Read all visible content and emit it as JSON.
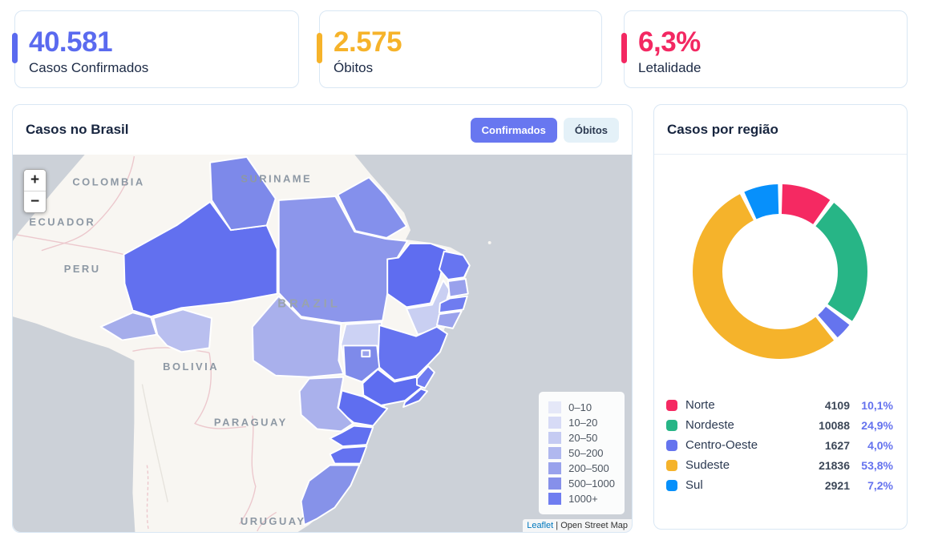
{
  "stats": [
    {
      "value": "40.581",
      "label": "Casos Confirmados",
      "color": "#5a6aef"
    },
    {
      "value": "2.575",
      "label": "Óbitos",
      "color": "#f6b32a"
    },
    {
      "value": "6,3%",
      "label": "Letalidade",
      "color": "#f32862"
    }
  ],
  "map_card": {
    "title": "Casos no Brasil",
    "buttons": [
      {
        "label": "Confirmados",
        "active": true
      },
      {
        "label": "Óbitos",
        "active": false
      }
    ],
    "zoom_in_label": "+",
    "zoom_out_label": "−",
    "country_labels": [
      "COLOMBIA",
      "ECUADOR",
      "PERU",
      "SURINAME",
      "BRAZIL",
      "BOLIVIA",
      "PARAGUAY",
      "URUGUAY"
    ],
    "legend": {
      "items": [
        {
          "label": "0–10",
          "color": "#e5e8f8"
        },
        {
          "label": "10–20",
          "color": "#d7dbf6"
        },
        {
          "label": "20–50",
          "color": "#c5cbf2"
        },
        {
          "label": "50–200",
          "color": "#b0b8ef"
        },
        {
          "label": "200–500",
          "color": "#99a2ec"
        },
        {
          "label": "500–1000",
          "color": "#8690ea"
        },
        {
          "label": "1000+",
          "color": "#6f7df0"
        }
      ]
    },
    "attribution": {
      "leaflet": "Leaflet",
      "separator": "|",
      "source": "Open Street Map"
    }
  },
  "region_card": {
    "title": "Casos por região",
    "regions": [
      {
        "name": "Norte",
        "value": "4109",
        "pct": "10,1%",
        "color": "#f52962"
      },
      {
        "name": "Nordeste",
        "value": "10088",
        "pct": "24,9%",
        "color": "#27b586"
      },
      {
        "name": "Centro-Oeste",
        "value": "1627",
        "pct": "4,0%",
        "color": "#6574ee"
      },
      {
        "name": "Sudeste",
        "value": "21836",
        "pct": "53,8%",
        "color": "#f5b32b"
      },
      {
        "name": "Sul",
        "value": "2921",
        "pct": "7,2%",
        "color": "#0790fb"
      }
    ]
  },
  "chart_data": {
    "type": "pie",
    "title": "Casos por região",
    "categories": [
      "Norte",
      "Nordeste",
      "Centro-Oeste",
      "Sudeste",
      "Sul"
    ],
    "values": [
      4109,
      10088,
      1627,
      21836,
      2921
    ],
    "percentages": [
      "10,1%",
      "24,9%",
      "4,0%",
      "53,8%",
      "7,2%"
    ],
    "colors": [
      "#f52962",
      "#27b586",
      "#6574ee",
      "#f5b32b",
      "#0790fb"
    ],
    "donut": true,
    "start_angle_deg": -90,
    "direction": "clockwise",
    "legend_position": "bottom"
  }
}
